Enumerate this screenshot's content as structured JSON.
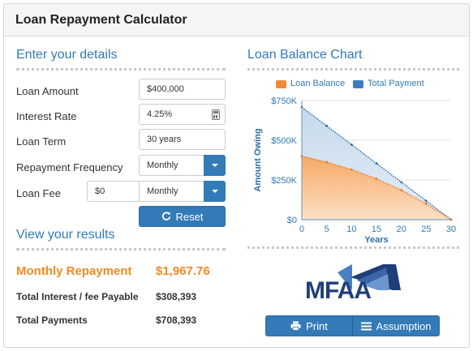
{
  "header": {
    "title": "Loan Repayment Calculator"
  },
  "details": {
    "title": "Enter your details",
    "loan_amount": {
      "label": "Loan Amount",
      "value": "$400,000"
    },
    "interest_rate": {
      "label": "Interest Rate",
      "value": "4.25%"
    },
    "loan_term": {
      "label": "Loan Term",
      "value": "30 years"
    },
    "repayment_frequency": {
      "label": "Repayment Frequency",
      "value": "Monthly"
    },
    "loan_fee": {
      "label": "Loan Fee",
      "value": "$0",
      "frequency": "Monthly"
    },
    "reset_label": "Reset"
  },
  "results": {
    "title": "View your results",
    "monthly_repayment": {
      "label": "Monthly Repayment",
      "value": "$1,967.76"
    },
    "total_interest": {
      "label": "Total Interest / fee Payable",
      "value": "$308,393"
    },
    "total_payments": {
      "label": "Total Payments",
      "value": "$708,393"
    }
  },
  "chart_section": {
    "title": "Loan Balance Chart"
  },
  "chart_data": {
    "type": "area",
    "xlabel": "Years",
    "ylabel": "Amount Owing",
    "x": [
      0,
      5,
      10,
      15,
      20,
      25,
      30
    ],
    "x_ticks": [
      "0",
      "5",
      "10",
      "15",
      "20",
      "25",
      "30"
    ],
    "y_ticks": [
      "$0",
      "$250K",
      "$500K",
      "$750K"
    ],
    "ylim": [
      0,
      750000
    ],
    "xlim": [
      0,
      30
    ],
    "grid": true,
    "legend_position": "top",
    "series": [
      {
        "name": "Loan Balance",
        "color": "#f0893a",
        "values": [
          400000,
          362000,
          315000,
          257000,
          186000,
          100000,
          0
        ]
      },
      {
        "name": "Total Payment",
        "color": "#3d7cc0",
        "values": [
          708393,
          590328,
          472262,
          354197,
          236131,
          118066,
          0
        ]
      }
    ]
  },
  "logo": {
    "text": "MFAA"
  },
  "buttons": {
    "print_label": "Print",
    "assumption_label": "Assumption"
  },
  "colors": {
    "accent": "#337ab7",
    "highlight": "#f08a24"
  },
  "icons": {
    "reset": "refresh-icon",
    "print": "print-icon",
    "assumption": "list-icon",
    "calc": "calculator-icon",
    "dropdown": "chevron-down-icon"
  }
}
